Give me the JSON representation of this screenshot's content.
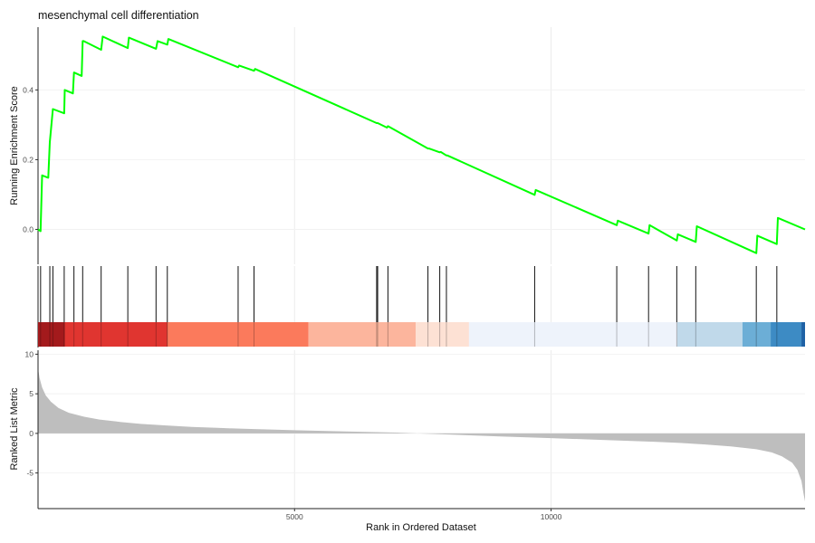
{
  "chart_data": {
    "type": "line",
    "title": "mesenchymal cell differentiation",
    "xlabel": "Rank in Ordered Dataset",
    "xlim": [
      0,
      14950
    ],
    "x_ticks": [
      5000,
      10000
    ],
    "grid": true,
    "es_panel": {
      "ylabel": "Running Enrichment Score",
      "ylim": [
        -0.1,
        0.58
      ],
      "y_ticks": [
        0.0,
        0.2,
        0.4
      ],
      "color": "#00ff00",
      "series": [
        {
          "x": [
            0,
            50,
            80,
            200,
            230,
            290,
            510,
            520,
            680,
            700,
            850,
            870,
            890,
            1230,
            1260,
            1750,
            1770,
            2300,
            2330,
            2520,
            2540,
            3900,
            3920,
            4210,
            4230,
            6600,
            6620,
            6800,
            6820,
            7600,
            7620,
            7830,
            7850,
            7960,
            7980,
            9680,
            9700,
            11280,
            11300,
            11900,
            11920,
            12450,
            12470,
            12820,
            12840,
            14000,
            14020,
            14400,
            14420,
            14950
          ],
          "y": [
            0.0,
            -0.005,
            0.155,
            0.148,
            0.25,
            0.345,
            0.333,
            0.4,
            0.39,
            0.45,
            0.44,
            0.54,
            0.54,
            0.515,
            0.553,
            0.52,
            0.55,
            0.518,
            0.54,
            0.53,
            0.546,
            0.465,
            0.47,
            0.455,
            0.46,
            0.305,
            0.305,
            0.292,
            0.296,
            0.232,
            0.232,
            0.221,
            0.222,
            0.212,
            0.212,
            0.099,
            0.113,
            0.012,
            0.025,
            -0.012,
            0.012,
            -0.032,
            -0.014,
            -0.036,
            0.009,
            -0.068,
            -0.018,
            -0.042,
            0.033,
            0.0
          ]
        }
      ]
    },
    "hits": [
      50,
      230,
      290,
      510,
      700,
      870,
      1230,
      1750,
      2300,
      2520,
      3900,
      4210,
      6600,
      6620,
      6820,
      7600,
      7830,
      7960,
      9680,
      11280,
      11900,
      12450,
      12820,
      14000,
      14400
    ],
    "color_band": [
      {
        "start": 0,
        "end": 520,
        "color": "#a31a1c"
      },
      {
        "start": 520,
        "end": 2520,
        "color": "#e03530"
      },
      {
        "start": 2520,
        "end": 5270,
        "color": "#fb7a5c"
      },
      {
        "start": 5270,
        "end": 7360,
        "color": "#fcb59d"
      },
      {
        "start": 7360,
        "end": 8400,
        "color": "#fde1d4"
      },
      {
        "start": 8400,
        "end": 12460,
        "color": "#eef3fb"
      },
      {
        "start": 12460,
        "end": 13730,
        "color": "#c0d9ea"
      },
      {
        "start": 13730,
        "end": 14280,
        "color": "#6caed6"
      },
      {
        "start": 14280,
        "end": 14880,
        "color": "#3d8bc4"
      },
      {
        "start": 14880,
        "end": 14950,
        "color": "#1e61a5"
      }
    ],
    "metric_panel": {
      "ylabel": "Ranked List Metric",
      "ylim": [
        -9.5,
        10.5
      ],
      "y_ticks": [
        -5,
        0,
        5,
        10
      ],
      "y_tick_labels": [
        "-5",
        "0",
        "5",
        "10"
      ],
      "fill": "#bebebe",
      "series": [
        {
          "x": [
            0,
            30,
            80,
            150,
            250,
            400,
            600,
            900,
            1200,
            1600,
            2000,
            2500,
            3000,
            3500,
            4000,
            5000,
            6000,
            7000,
            7400,
            8000,
            9000,
            10000,
            11000,
            12000,
            12500,
            13000,
            13500,
            14000,
            14300,
            14500,
            14700,
            14800,
            14880,
            14920,
            14950
          ],
          "y": [
            8.2,
            7.0,
            5.8,
            4.8,
            4.0,
            3.2,
            2.6,
            2.1,
            1.75,
            1.45,
            1.2,
            1.0,
            0.82,
            0.7,
            0.58,
            0.4,
            0.24,
            0.1,
            0.0,
            -0.14,
            -0.38,
            -0.6,
            -0.82,
            -1.05,
            -1.2,
            -1.4,
            -1.65,
            -2.0,
            -2.4,
            -2.9,
            -3.7,
            -4.6,
            -6.0,
            -7.6,
            -8.6
          ]
        }
      ]
    }
  }
}
